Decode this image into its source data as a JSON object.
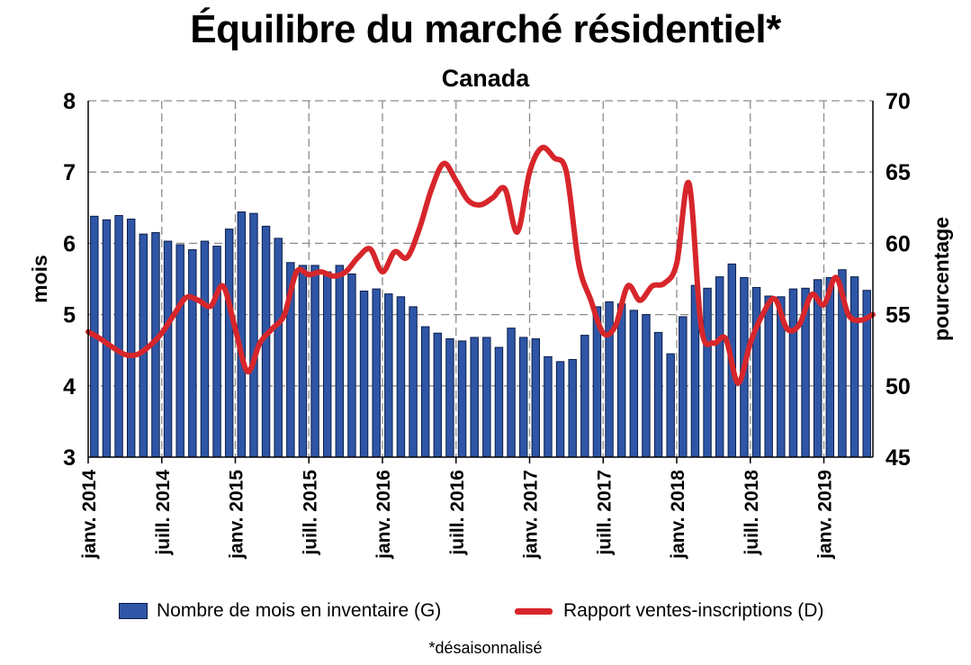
{
  "title": "Équilibre du marché résidentiel*",
  "subtitle": "Canada",
  "footnote": "*désaisonnalisé",
  "colors": {
    "bar_fill": "#2f56a6",
    "bar_stroke": "#0b1d4a",
    "line": "#d7262b",
    "grid": "#8c8c8c"
  },
  "chart_data": {
    "type": "bar+line",
    "grid": true,
    "legend_position": "bottom",
    "x_tick_labels": [
      "janv. 2014",
      "juill. 2014",
      "janv. 2015",
      "juill. 2015",
      "janv. 2016",
      "juill. 2016",
      "janv. 2017",
      "juill. 2017",
      "janv. 2018",
      "juill. 2018",
      "janv. 2019"
    ],
    "y_left": {
      "label": "mois",
      "ylim": [
        3,
        8
      ],
      "ticks": [
        "3",
        "4",
        "5",
        "6",
        "7",
        "8"
      ]
    },
    "y_right": {
      "label": "pourcentage",
      "ylim": [
        45,
        70
      ],
      "ticks": [
        "45",
        "50",
        "55",
        "60",
        "65",
        "70"
      ]
    },
    "series": [
      {
        "name": "Nombre de mois en inventaire (G)",
        "type": "bar",
        "axis": "left",
        "values": [
          6.38,
          6.33,
          6.39,
          6.34,
          6.13,
          6.15,
          6.03,
          5.98,
          5.91,
          6.03,
          5.96,
          6.2,
          6.44,
          6.42,
          6.24,
          6.07,
          5.73,
          5.69,
          5.69,
          5.6,
          5.69,
          5.57,
          5.33,
          5.36,
          5.29,
          5.25,
          5.11,
          4.83,
          4.74,
          4.66,
          4.63,
          4.68,
          4.68,
          4.54,
          4.81,
          4.68,
          4.66,
          4.41,
          4.34,
          4.37,
          4.71,
          5.11,
          5.18,
          5.15,
          5.06,
          5.0,
          4.75,
          4.45,
          4.97,
          5.41,
          5.37,
          5.53,
          5.71,
          5.52,
          5.38,
          5.26,
          5.25,
          5.36,
          5.37,
          5.49,
          5.52,
          5.63,
          5.53,
          5.34
        ]
      },
      {
        "name": "Rapport ventes-inscriptions (D)",
        "type": "line",
        "axis": "right",
        "values": [
          53.8,
          53.3,
          52.7,
          52.2,
          52.2,
          52.8,
          53.7,
          55.0,
          56.2,
          56.0,
          55.6,
          57.0,
          54.0,
          51.0,
          53.0,
          54.0,
          55.0,
          58.0,
          57.8,
          58.0,
          57.7,
          58.0,
          59.0,
          59.6,
          58.0,
          59.4,
          59.0,
          61.0,
          63.8,
          65.6,
          64.4,
          63.0,
          62.7,
          63.2,
          63.8,
          60.8,
          65.0,
          66.7,
          66.0,
          65.0,
          58.6,
          56.0,
          53.7,
          54.2,
          57.0,
          56.0,
          57.0,
          57.2,
          58.6,
          64.2,
          54.1,
          53.0,
          53.3,
          50.2,
          53.0,
          55.0,
          56.1,
          54.0,
          54.3,
          56.4,
          55.7,
          57.6,
          55.0,
          54.6,
          55.0
        ]
      }
    ]
  }
}
